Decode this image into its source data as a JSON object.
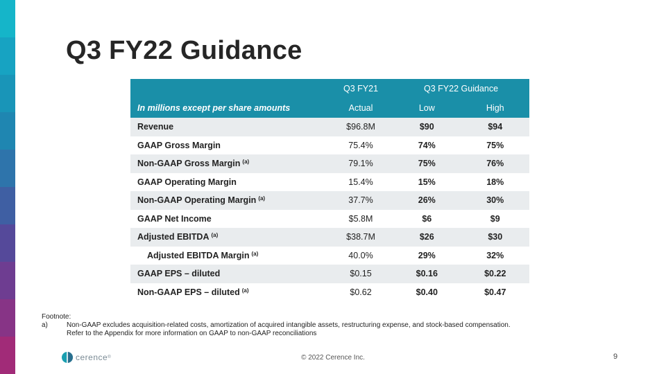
{
  "colors": {
    "header_bg": "#1a8fa8",
    "shade_row": "#e9ecee",
    "sidebar": [
      "#15b5c9",
      "#17a3c2",
      "#1995b8",
      "#1f86b1",
      "#2e74ab",
      "#3f5fa3",
      "#55499a",
      "#6e3d91",
      "#873486",
      "#a12b78",
      "#b8226a",
      "#c8145a"
    ]
  },
  "title": "Q3 FY22 Guidance",
  "table": {
    "header_top": {
      "col_actual": "Q3 FY21",
      "col_guidance": "Q3 FY22 Guidance"
    },
    "header_sub": {
      "label": "In millions except per share amounts",
      "actual": "Actual",
      "low": "Low",
      "high": "High"
    },
    "rows": [
      {
        "label": "Revenue",
        "note": "",
        "actual": "$96.8M",
        "low": "$90",
        "high": "$94"
      },
      {
        "label": "GAAP Gross Margin",
        "note": "",
        "actual": "75.4%",
        "low": "74%",
        "high": "75%"
      },
      {
        "label": "Non-GAAP Gross Margin",
        "note": "(a)",
        "actual": "79.1%",
        "low": "75%",
        "high": "76%"
      },
      {
        "label": "GAAP Operating Margin",
        "note": "",
        "actual": "15.4%",
        "low": "15%",
        "high": "18%"
      },
      {
        "label": "Non-GAAP Operating Margin",
        "note": "(a)",
        "actual": "37.7%",
        "low": "26%",
        "high": "30%"
      },
      {
        "label": "GAAP Net Income",
        "note": "",
        "actual": "$5.8M",
        "low": "$6",
        "high": "$9"
      },
      {
        "label": "Adjusted EBITDA",
        "note": "(a)",
        "actual": "$38.7M",
        "low": "$26",
        "high": "$30"
      },
      {
        "label": "Adjusted EBITDA Margin",
        "note": "(a)",
        "actual": "40.0%",
        "low": "29%",
        "high": "32%"
      },
      {
        "label": "GAAP EPS – diluted",
        "note": "",
        "actual": "$0.15",
        "low": "$0.16",
        "high": "$0.22"
      },
      {
        "label": "Non-GAAP EPS – diluted",
        "note": "(a)",
        "actual": "$0.62",
        "low": "$0.40",
        "high": "$0.47"
      }
    ]
  },
  "footnote": {
    "heading": "Footnote:",
    "mark": "a)",
    "line1": "Non-GAAP excludes acquisition-related costs, amortization of acquired intangible assets, restructuring expense, and stock-based compensation.",
    "line2": "Refer to the Appendix for more information on GAAP to non-GAAP reconciliations"
  },
  "logo": {
    "text": "cerence",
    "trademark": "®",
    "icon": "cerence-logo-icon"
  },
  "copyright": "© 2022 Cerence Inc.",
  "page_number": "9"
}
